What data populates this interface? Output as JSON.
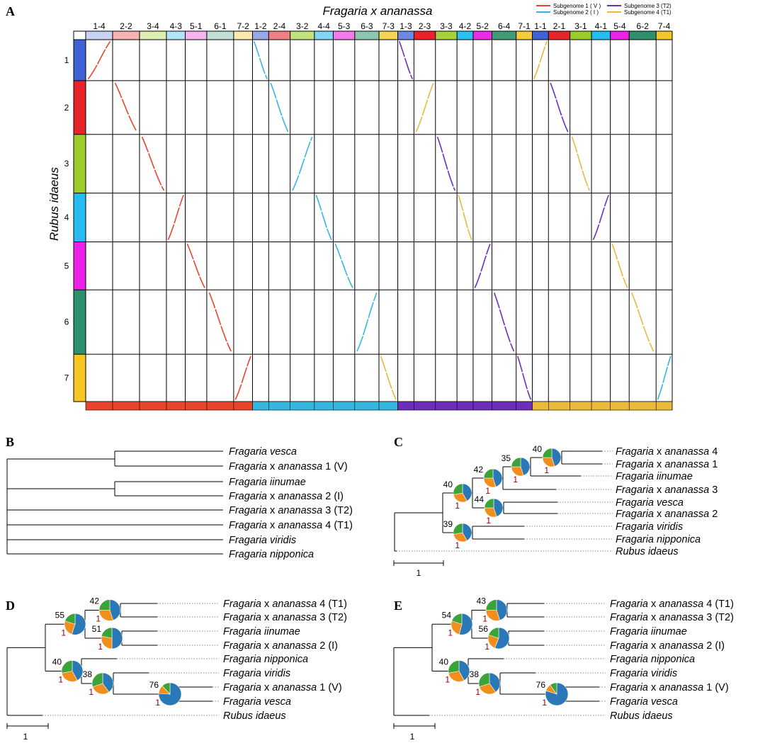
{
  "panel_labels": [
    "A",
    "B",
    "C",
    "D",
    "E"
  ],
  "panel_a": {
    "col_title": "Fragaria x ananassa",
    "row_title": "Rubus idaeus",
    "legend": [
      {
        "label": "Subgenome 1 ( V )",
        "color": "#e8452c"
      },
      {
        "label": "Subgenome 2 ( I )",
        "color": "#35b6de"
      },
      {
        "label": "Subgenome 3 (T2)",
        "color": "#6f2dbd"
      },
      {
        "label": "Subgenome 4 (T1)",
        "color": "#e9b93a"
      }
    ],
    "rows": [
      {
        "label": "1",
        "color": "#3f63d6"
      },
      {
        "label": "2",
        "color": "#e6242a"
      },
      {
        "label": "3",
        "color": "#9acd2a"
      },
      {
        "label": "4",
        "color": "#25bdf0"
      },
      {
        "label": "5",
        "color": "#ec22e6"
      },
      {
        "label": "6",
        "color": "#2e8f6b"
      },
      {
        "label": "7",
        "color": "#f6c624"
      }
    ],
    "groups": [
      {
        "color": "#e8452c",
        "cols": [
          {
            "label": "1-4",
            "color": "#c7d2f5",
            "w": 1
          },
          {
            "label": "2-2",
            "color": "#f7b2b2",
            "w": 1
          },
          {
            "label": "3-4",
            "color": "#dcefb0",
            "w": 1
          },
          {
            "label": "4-3",
            "color": "#b2e4f7",
            "w": 0.7
          },
          {
            "label": "5-1",
            "color": "#f7b4f2",
            "w": 0.8
          },
          {
            "label": "6-1",
            "color": "#bfe0d3",
            "w": 1
          },
          {
            "label": "7-2",
            "color": "#fbe9ae",
            "w": 0.7
          }
        ]
      },
      {
        "color": "#35b6de",
        "cols": [
          {
            "label": "1-2",
            "color": "#97a9ea",
            "w": 0.6
          },
          {
            "label": "2-4",
            "color": "#f07f84",
            "w": 0.8
          },
          {
            "label": "3-2",
            "color": "#c2e27c",
            "w": 0.9
          },
          {
            "label": "4-4",
            "color": "#7fd6f6",
            "w": 0.7
          },
          {
            "label": "5-3",
            "color": "#f27cee",
            "w": 0.8
          },
          {
            "label": "6-3",
            "color": "#8cc6ae",
            "w": 0.9
          },
          {
            "label": "7-3",
            "color": "#f8d35a",
            "w": 0.7
          }
        ]
      },
      {
        "color": "#6f2dbd",
        "cols": [
          {
            "label": "1-3",
            "color": "#6c8ae5",
            "w": 0.6
          },
          {
            "label": "2-3",
            "color": "#ec2026",
            "w": 0.8
          },
          {
            "label": "3-3",
            "color": "#a7d13d",
            "w": 0.8
          },
          {
            "label": "4-2",
            "color": "#2bc0f0",
            "w": 0.6
          },
          {
            "label": "5-2",
            "color": "#ee2ae8",
            "w": 0.7
          },
          {
            "label": "6-4",
            "color": "#3f9a76",
            "w": 0.9
          },
          {
            "label": "7-1",
            "color": "#f7cc38",
            "w": 0.6
          }
        ]
      },
      {
        "color": "#e9b93a",
        "cols": [
          {
            "label": "1-1",
            "color": "#3f63d6",
            "w": 0.6
          },
          {
            "label": "2-1",
            "color": "#e6242a",
            "w": 0.8
          },
          {
            "label": "3-1",
            "color": "#9acd2a",
            "w": 0.8
          },
          {
            "label": "4-1",
            "color": "#25bdf0",
            "w": 0.7
          },
          {
            "label": "5-4",
            "color": "#ec22e6",
            "w": 0.7
          },
          {
            "label": "6-2",
            "color": "#2e8f6b",
            "w": 1.0
          },
          {
            "label": "7-4",
            "color": "#f6c624",
            "w": 0.6
          }
        ]
      }
    ]
  },
  "panel_b": {
    "taxa": [
      {
        "label": "Fragaria vesca",
        "italic": "Fragaria vesca",
        "suffix": ""
      },
      {
        "label": "Fragaria x ananassa 1 (V)",
        "italic": "Fragaria",
        "mid": " x ",
        "italic2": "ananassa",
        "suffix": " 1 (V)"
      },
      {
        "label": "Fragaria iinumae",
        "italic": "Fragaria iinumae",
        "suffix": ""
      },
      {
        "label": "Fragaria x ananassa 2 (I)",
        "italic": "Fragaria",
        "mid": " x ",
        "italic2": "ananassa",
        "suffix": " 2 (I)"
      },
      {
        "label": "Fragaria x ananassa 3 (T2)",
        "italic": "Fragaria",
        "mid": " x ",
        "italic2": "ananassa",
        "suffix": " 3 (T2)"
      },
      {
        "label": "Fragaria x ananassa 4 (T1)",
        "italic": "Fragaria",
        "mid": " x ",
        "italic2": "ananassa",
        "suffix": " 4 (T1)"
      },
      {
        "label": "Fragaria viridis",
        "italic": "Fragaria viridis",
        "suffix": ""
      },
      {
        "label": "Fragaria nipponica",
        "italic": "Fragaria nipponica",
        "suffix": ""
      }
    ]
  },
  "panel_c": {
    "taxa": [
      {
        "italic": "Fragaria",
        "mid": " x ",
        "italic2": "ananassa",
        "suffix": " 4"
      },
      {
        "italic": "Fragaria",
        "mid": " x ",
        "italic2": "ananassa",
        "suffix": " 1"
      },
      {
        "italic": "Fragaria iinumae",
        "suffix": ""
      },
      {
        "italic": "Fragaria",
        "mid": " x ",
        "italic2": "ananassa",
        "suffix": " 3"
      },
      {
        "italic": "Fragaria vesca",
        "suffix": ""
      },
      {
        "italic": "Fragaria",
        "mid": " x ",
        "italic2": "ananassa",
        "suffix": " 2"
      },
      {
        "italic": "Fragaria viridis",
        "suffix": ""
      },
      {
        "italic": "Fragaria nipponica",
        "suffix": ""
      },
      {
        "italic": "Rubus idaeus",
        "suffix": ""
      }
    ],
    "nodes": [
      {
        "support": "40",
        "pp": "1",
        "pie": [
          0.45,
          0.3,
          0.25
        ]
      },
      {
        "support": "35",
        "pp": "1",
        "pie": [
          0.45,
          0.3,
          0.25
        ]
      },
      {
        "support": "42",
        "pp": "1",
        "pie": [
          0.45,
          0.3,
          0.25
        ]
      },
      {
        "support": "44",
        "pp": "1",
        "pie": [
          0.45,
          0.3,
          0.25
        ]
      },
      {
        "support": "40",
        "pp": "1",
        "pie": [
          0.42,
          0.3,
          0.28
        ]
      },
      {
        "support": "39",
        "pp": "1",
        "pie": [
          0.42,
          0.3,
          0.28
        ]
      }
    ],
    "scale": "1"
  },
  "panel_d": {
    "taxa": [
      {
        "italic": "Fragaria",
        "mid": " x ",
        "italic2": "ananassa",
        "suffix": " 4 (T1)"
      },
      {
        "italic": "Fragaria",
        "mid": " x ",
        "italic2": "ananassa",
        "suffix": " 3 (T2)"
      },
      {
        "italic": "Fragaria iinumae",
        "suffix": ""
      },
      {
        "italic": "Fragaria",
        "mid": " x ",
        "italic2": "ananassa",
        "suffix": " 2 (I)"
      },
      {
        "italic": "Fragaria nipponica",
        "suffix": ""
      },
      {
        "italic": "Fragaria viridis",
        "suffix": ""
      },
      {
        "italic": "Fragaria",
        "mid": " x ",
        "italic2": "ananassa",
        "suffix": " 1 (V)"
      },
      {
        "italic": "Fragaria vesca",
        "suffix": ""
      },
      {
        "italic": "Rubus idaeus",
        "suffix": ""
      }
    ],
    "nodes": [
      {
        "support": "55",
        "pp": "1",
        "pie": [
          0.55,
          0.25,
          0.2
        ]
      },
      {
        "support": "42",
        "pp": "1",
        "pie": [
          0.45,
          0.3,
          0.25
        ]
      },
      {
        "support": "51",
        "pp": "1",
        "pie": [
          0.5,
          0.28,
          0.22
        ]
      },
      {
        "support": "40",
        "pp": "1",
        "pie": [
          0.42,
          0.3,
          0.28
        ]
      },
      {
        "support": "38",
        "pp": "1",
        "pie": [
          0.4,
          0.3,
          0.3
        ]
      },
      {
        "support": "76",
        "pp": "1",
        "pie": [
          0.76,
          0.12,
          0.12
        ]
      }
    ],
    "scale": "1"
  },
  "panel_e": {
    "taxa": [
      {
        "italic": "Fragaria",
        "mid": " x ",
        "italic2": "ananassa",
        "suffix": " 4 (T1)"
      },
      {
        "italic": "Fragaria",
        "mid": " x ",
        "italic2": "ananassa",
        "suffix": " 3 (T2)"
      },
      {
        "italic": "Fragaria iinumae",
        "suffix": ""
      },
      {
        "italic": "Fragaria",
        "mid": " x ",
        "italic2": "ananassa",
        "suffix": " 2 (I)"
      },
      {
        "italic": "Fragaria nipponica",
        "suffix": ""
      },
      {
        "italic": "Fragaria viridis",
        "suffix": ""
      },
      {
        "italic": "Fragaria",
        "mid": " x ",
        "italic2": "ananassa",
        "suffix": " 1 (V)"
      },
      {
        "italic": "Fragaria vesca",
        "suffix": ""
      },
      {
        "italic": "Rubus idaeus",
        "suffix": ""
      }
    ],
    "nodes": [
      {
        "support": "54",
        "pp": "1",
        "pie": [
          0.54,
          0.26,
          0.2
        ]
      },
      {
        "support": "43",
        "pp": "1",
        "pie": [
          0.45,
          0.3,
          0.25
        ]
      },
      {
        "support": "56",
        "pp": "1",
        "pie": [
          0.56,
          0.24,
          0.2
        ]
      },
      {
        "support": "40",
        "pp": "1",
        "pie": [
          0.42,
          0.3,
          0.28
        ]
      },
      {
        "support": "38",
        "pp": "1",
        "pie": [
          0.4,
          0.3,
          0.3
        ]
      },
      {
        "support": "76",
        "pp": "1",
        "pie": [
          0.8,
          0.1,
          0.1
        ]
      }
    ],
    "scale": "1"
  },
  "pie_colors": [
    "#2a78b6",
    "#f28e1c",
    "#3ca33a"
  ]
}
